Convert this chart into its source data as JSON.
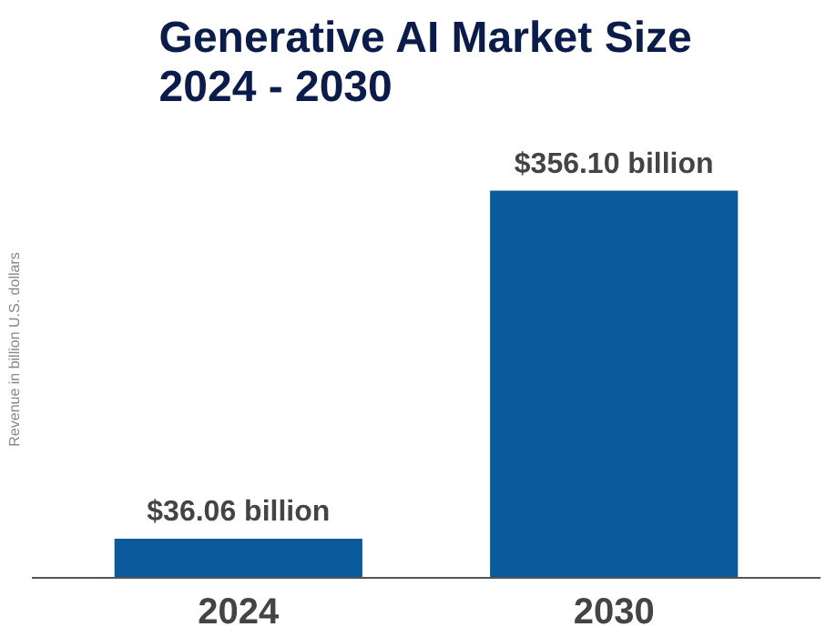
{
  "chart_data": {
    "type": "bar",
    "title": "Generative AI Market Size\n2024 - 2030",
    "ylabel": "Revenue in billion U.S. dollars",
    "categories": [
      "2024",
      "2030"
    ],
    "values": [
      36.06,
      356.1
    ],
    "color": "#0a5a9c",
    "value_labels": [
      "$36.06 billion",
      "$356.10 billion"
    ]
  }
}
